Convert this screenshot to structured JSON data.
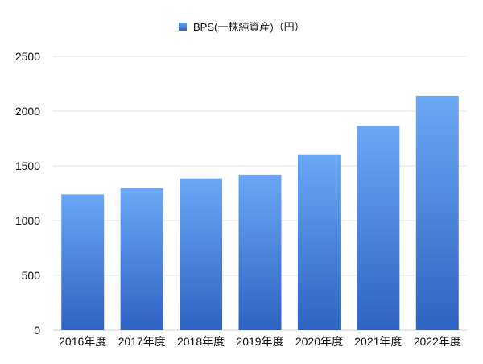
{
  "chart_data": {
    "type": "bar",
    "title": "",
    "xlabel": "",
    "ylabel": "",
    "categories": [
      "2016年度",
      "2017年度",
      "2018年度",
      "2019年度",
      "2020年度",
      "2021年度",
      "2022年度"
    ],
    "series": [
      {
        "name": "BPS(一株純資産)（円）",
        "values": [
          1240,
          1295,
          1385,
          1420,
          1605,
          1865,
          2140
        ],
        "color_top": "#6aa8f5",
        "color_bottom": "#2f63c4"
      }
    ],
    "ylim": [
      0,
      2500
    ],
    "yticks": [
      "0",
      "500",
      "1000",
      "1500",
      "2000",
      "2500"
    ],
    "grid": true,
    "legend_position": "top-center"
  }
}
